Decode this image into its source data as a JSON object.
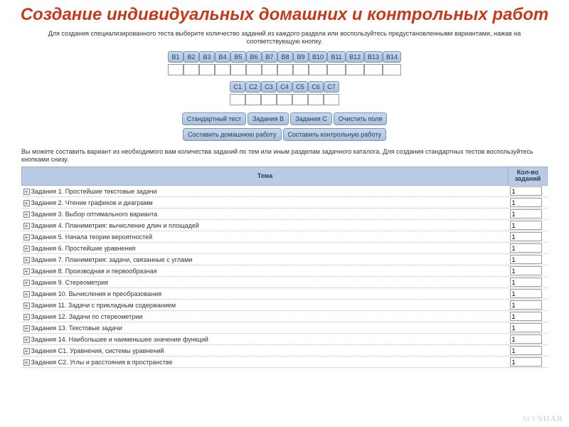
{
  "title": "Создание индивидуальных домашних и контрольных работ",
  "instructions": "Для создания специализированного теста выберите количество заданий из каждого раздела или воспользуйтесь предустановленными вариантами, нажав на соответствующую кнопку.",
  "groupB": [
    "В1",
    "В2",
    "В3",
    "В4",
    "В5",
    "В6",
    "В7",
    "В8",
    "В9",
    "В10",
    "В11",
    "В12",
    "В13",
    "В14"
  ],
  "groupC": [
    "С1",
    "С2",
    "С3",
    "С4",
    "С5",
    "С6",
    "С7"
  ],
  "actions1": [
    "Стандартный тест",
    "Задания В",
    "Задания С",
    "Очистить поля"
  ],
  "actions2": [
    "Составить домашнюю работу",
    "Составить контрольную работу"
  ],
  "desc": "Вы можете составить вариант из необходимого вам количества заданий по тем или иным разделам задачного каталога. Для создания стандартных тестов воспользуйтесь кнопками снизу.",
  "tableHeaders": {
    "topic": "Тема",
    "count": "Кол-во заданий"
  },
  "topics": [
    {
      "name": "Задания 1. Простейшие текстовые задачи",
      "count": "1"
    },
    {
      "name": "Задания 2. Чтение графиков и диаграмм",
      "count": "1"
    },
    {
      "name": "Задания 3. Выбор оптимального варианта",
      "count": "1"
    },
    {
      "name": "Задания 4. Планиметрия: вычисление длин и площадей",
      "count": "1"
    },
    {
      "name": "Задания 5. Начала теории вероятностей",
      "count": "1"
    },
    {
      "name": "Задания 6. Простейшие уравнения",
      "count": "1"
    },
    {
      "name": "Задания 7. Планиметрия: задачи, связанные с углами",
      "count": "1"
    },
    {
      "name": "Задания 8. Производная и первообразная",
      "count": "1"
    },
    {
      "name": "Задания 9. Стереометрия",
      "count": "1"
    },
    {
      "name": "Задания 10. Вычисления и преобразования",
      "count": "1"
    },
    {
      "name": "Задания 11. Задачи с прикладным содержанием",
      "count": "1"
    },
    {
      "name": "Задания 12. Задачи по стереометрии",
      "count": "1"
    },
    {
      "name": "Задания 13. Текстовые задачи",
      "count": "1"
    },
    {
      "name": "Задания 14. Наибольшее и наименьшее значение функций",
      "count": "1"
    },
    {
      "name": "Задания С1. Уравнения, системы уравнений",
      "count": "1"
    },
    {
      "name": "Задания С2. Углы и расстояния в пространстве",
      "count": "1"
    }
  ],
  "watermark": "MYSHAR",
  "colors": {
    "title": "#c43a1a",
    "btnGradTop": "#c9d9ed",
    "btnGradBottom": "#a9c0dd",
    "btnBorder": "#7a95b8",
    "headerBg": "#b9cce3"
  }
}
